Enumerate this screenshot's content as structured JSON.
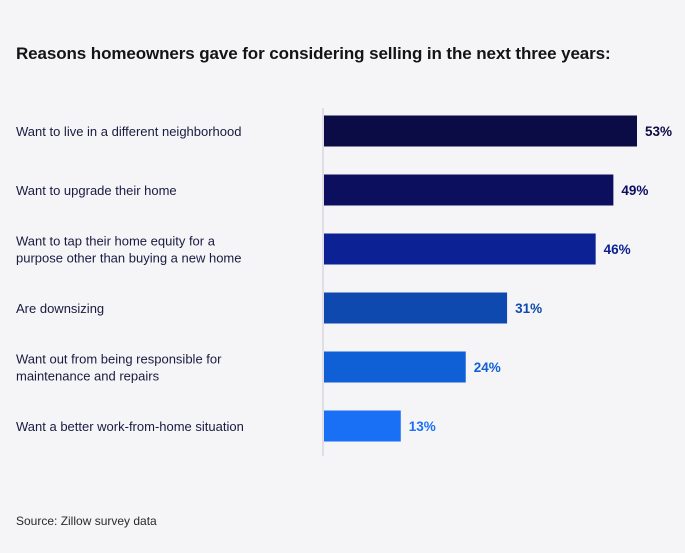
{
  "chart_data": {
    "type": "bar",
    "orientation": "horizontal",
    "title": "Reasons homeowners gave for considering selling in the next three years:",
    "categories": [
      [
        "Want to live in a different neighborhood"
      ],
      [
        "Want to upgrade their home"
      ],
      [
        "Want to tap their home equity for a",
        "purpose other than buying a new home"
      ],
      [
        "Are downsizing"
      ],
      [
        "Want out from being responsible for",
        "maintenance and repairs"
      ],
      [
        "Want a better work-from-home situation"
      ]
    ],
    "values": [
      53,
      49,
      46,
      31,
      24,
      13
    ],
    "value_labels": [
      "53%",
      "49%",
      "46%",
      "31%",
      "24%",
      "13%"
    ],
    "bar_colors": [
      "#0b0b45",
      "#0b0f5e",
      "#0c2193",
      "#0d49ae",
      "#0f5fd6",
      "#1a70f5"
    ],
    "label_colors": [
      "#0b0b45",
      "#0b0f5e",
      "#0c2193",
      "#0d49ae",
      "#0f5fd6",
      "#1a70f5"
    ],
    "xlim": [
      0,
      53
    ],
    "grid": false,
    "legend": "none"
  },
  "source": "Source: Zillow survey data"
}
